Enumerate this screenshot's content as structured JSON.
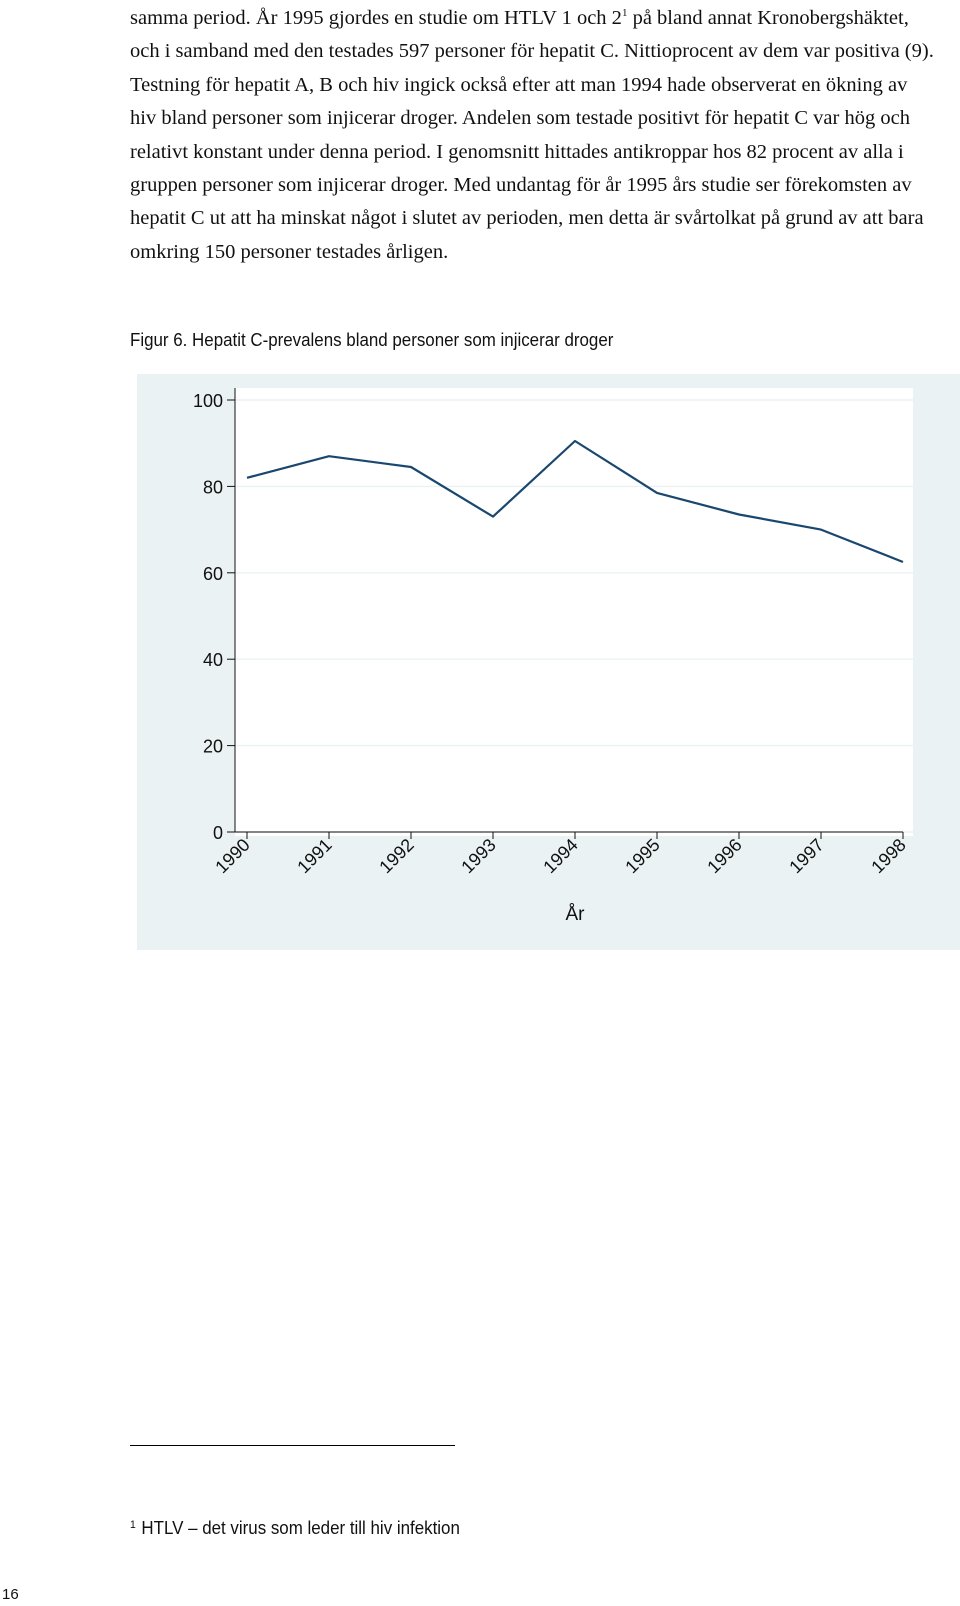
{
  "body_text": {
    "part1": "samma period. År 1995 gjordes en studie om HTLV 1 och 2",
    "footnote_ref": "1",
    "part2": " på bland annat Kronobergshäktet, och i samband med den testades 597 personer för hepatit C. Nittioprocent av dem var positiva (9). Testning för hepatit A, B och hiv ingick också efter att man 1994 hade observerat en ökning av hiv bland personer som injicerar droger. Andelen som testade positivt för hepatit C var hög och relativt konstant under denna period. I genomsnitt hittades antikroppar hos 82 procent av alla i gruppen personer som injicerar droger. Med undantag för år 1995 års studie ser förekomsten av hepatit C ut att ha minskat något i slutet av perioden, men detta är svårtolkat på grund av att bara omkring 150 personer testades årligen."
  },
  "figure_caption": "Figur 6. Hepatit C-prevalens bland personer som injicerar droger",
  "chart_data": {
    "type": "line",
    "x": [
      "1990",
      "1991",
      "1992",
      "1993",
      "1994",
      "1995",
      "1996",
      "1997",
      "1998"
    ],
    "series": [
      {
        "values": [
          82,
          87,
          84.5,
          73,
          90.5,
          78.5,
          73.5,
          70,
          62.5
        ]
      }
    ],
    "yticks": [
      "0",
      "20",
      "40",
      "60",
      "80",
      "100"
    ],
    "ylim": [
      0,
      100
    ],
    "xlabel": "År",
    "ylabel": "",
    "grid": true,
    "colors": {
      "background": "#eaf2f3",
      "plot": "#ffffff",
      "line": "#1a476f",
      "grid": "#eaf2f3"
    }
  },
  "footnote": {
    "mark": "1",
    "text": "HTLV – det virus som leder till hiv infektion"
  },
  "page_number": "16"
}
